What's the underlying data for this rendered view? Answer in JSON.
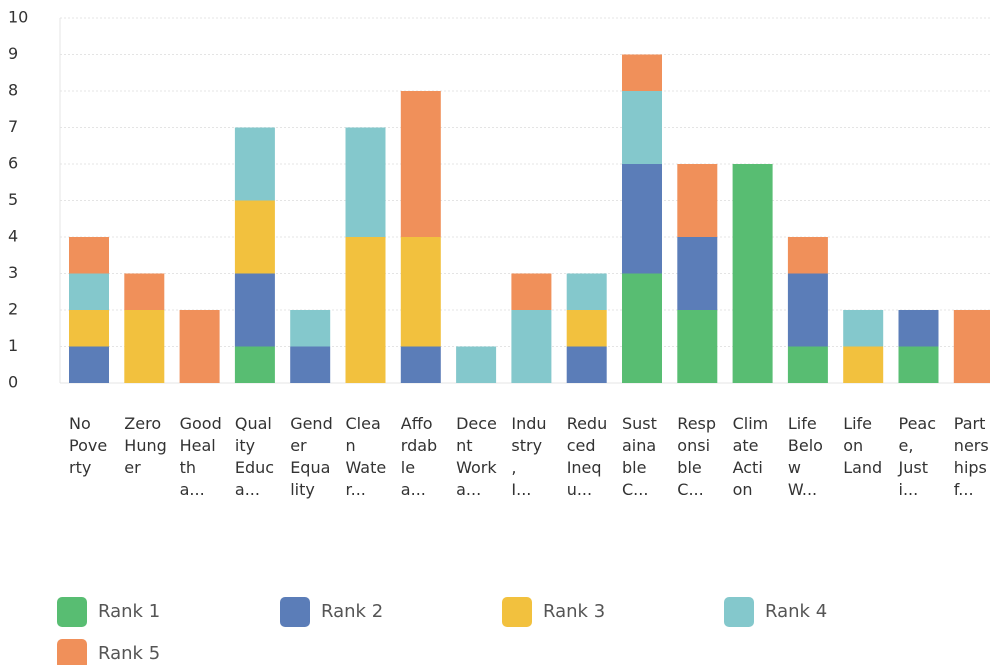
{
  "chart_data": {
    "type": "stacked_bar",
    "categories": [
      "No Poverty",
      "Zero Hunger",
      "Good Health a...",
      "Quality Educa...",
      "Gender Equality",
      "Clean Water...",
      "Affordable a...",
      "Decent Work a...",
      "Industry, I...",
      "Reduced Inequ...",
      "Sustainable C...",
      "Responsible C...",
      "Climate Action",
      "Life Below W...",
      "Life on Land",
      "Peace, Justi...",
      "Partnerships f..."
    ],
    "series": [
      {
        "name": "Rank 1",
        "color": "#58bd72",
        "values": [
          0,
          0,
          0,
          1,
          0,
          0,
          0,
          0,
          0,
          0,
          3,
          2,
          6,
          1,
          0,
          1,
          0
        ]
      },
      {
        "name": "Rank 2",
        "color": "#5b7db8",
        "values": [
          1,
          0,
          0,
          2,
          1,
          0,
          1,
          0,
          0,
          1,
          3,
          2,
          0,
          2,
          0,
          1,
          0
        ]
      },
      {
        "name": "Rank 3",
        "color": "#f2c13e",
        "values": [
          1,
          2,
          0,
          2,
          0,
          4,
          3,
          0,
          0,
          1,
          0,
          0,
          0,
          0,
          1,
          0,
          0
        ]
      },
      {
        "name": "Rank 4",
        "color": "#84c8cc",
        "values": [
          1,
          0,
          0,
          2,
          1,
          3,
          0,
          1,
          2,
          1,
          2,
          0,
          0,
          0,
          1,
          0,
          0
        ]
      },
      {
        "name": "Rank 5",
        "color": "#f0905a",
        "values": [
          1,
          1,
          2,
          0,
          0,
          0,
          4,
          0,
          1,
          0,
          1,
          2,
          0,
          1,
          0,
          0,
          2
        ]
      }
    ],
    "ylim": [
      0,
      10
    ],
    "yticks": [
      0,
      1,
      2,
      3,
      4,
      5,
      6,
      7,
      8,
      9,
      10
    ],
    "grid": true,
    "legend": "bottom"
  }
}
